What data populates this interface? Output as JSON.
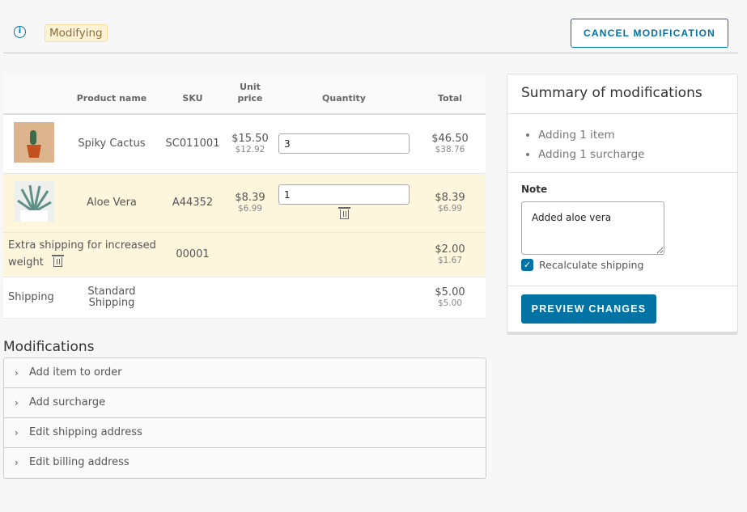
{
  "header": {
    "status_badge": "Modifying",
    "cancel_label": "CANCEL MODIFICATION"
  },
  "table": {
    "columns": [
      "",
      "Product name",
      "SKU",
      "Unit price",
      "Quantity",
      "Total"
    ],
    "rows": [
      {
        "name": "Spiky Cactus",
        "sku": "SC011001",
        "unit_price": "$15.50",
        "unit_price_net": "$12.92",
        "quantity": "3",
        "total": "$46.50",
        "total_net": "$38.76"
      },
      {
        "name": "Aloe Vera",
        "sku": "A44352",
        "unit_price": "$8.39",
        "unit_price_net": "$6.99",
        "quantity": "1",
        "total": "$8.39",
        "total_net": "$6.99"
      }
    ],
    "surcharge": {
      "name": "Extra shipping for increased weight",
      "sku": "00001",
      "total": "$2.00",
      "total_net": "$1.67"
    },
    "shipping": {
      "label": "Shipping",
      "method": "Standard Shipping",
      "total": "$5.00",
      "total_net": "$5.00"
    }
  },
  "modifications": {
    "title": "Modifications",
    "items": [
      "Add item to order",
      "Add surcharge",
      "Edit shipping address",
      "Edit billing address"
    ]
  },
  "summary": {
    "title": "Summary of modifications",
    "items": [
      "Adding 1 item",
      "Adding 1 surcharge"
    ],
    "note_label": "Note",
    "note_value": "Added aloe vera",
    "recalculate_label": "Recalculate shipping",
    "recalculate_checked": true,
    "preview_label": "PREVIEW CHANGES"
  },
  "colors": {
    "accent": "#0072a3",
    "modified_row": "#fdf5dc",
    "badge_bg": "#fdf3d4"
  }
}
